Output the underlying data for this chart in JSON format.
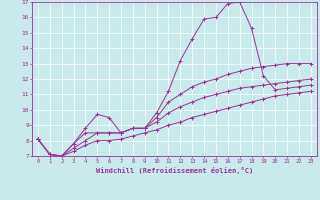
{
  "xlabel": "Windchill (Refroidissement éolien,°C)",
  "xlim": [
    -0.5,
    23.5
  ],
  "ylim": [
    7,
    17
  ],
  "xticks": [
    0,
    1,
    2,
    3,
    4,
    5,
    6,
    7,
    8,
    9,
    10,
    11,
    12,
    13,
    14,
    15,
    16,
    17,
    18,
    19,
    20,
    21,
    22,
    23
  ],
  "yticks": [
    7,
    8,
    9,
    10,
    11,
    12,
    13,
    14,
    15,
    16,
    17
  ],
  "bg_color": "#c8eaea",
  "line_color": "#993399",
  "grid_color": "#aacccc",
  "series": [
    [
      8.1,
      7.1,
      7.0,
      7.8,
      8.8,
      9.7,
      9.5,
      8.5,
      8.8,
      8.8,
      9.8,
      11.2,
      13.2,
      14.6,
      15.9,
      16.0,
      16.9,
      17.0,
      15.3,
      12.2,
      11.3,
      11.4,
      11.5,
      11.6
    ],
    [
      8.1,
      7.1,
      7.0,
      7.8,
      8.5,
      8.5,
      8.5,
      8.5,
      8.8,
      8.8,
      9.5,
      10.5,
      11.0,
      11.5,
      11.8,
      12.0,
      12.3,
      12.5,
      12.7,
      12.8,
      12.9,
      13.0,
      13.0,
      13.0
    ],
    [
      8.1,
      7.1,
      7.0,
      7.5,
      8.0,
      8.5,
      8.5,
      8.5,
      8.8,
      8.8,
      9.2,
      9.8,
      10.2,
      10.5,
      10.8,
      11.0,
      11.2,
      11.4,
      11.5,
      11.6,
      11.7,
      11.8,
      11.9,
      12.0
    ],
    [
      8.1,
      7.1,
      7.0,
      7.3,
      7.7,
      8.0,
      8.0,
      8.1,
      8.3,
      8.5,
      8.7,
      9.0,
      9.2,
      9.5,
      9.7,
      9.9,
      10.1,
      10.3,
      10.5,
      10.7,
      10.9,
      11.0,
      11.1,
      11.2
    ]
  ]
}
